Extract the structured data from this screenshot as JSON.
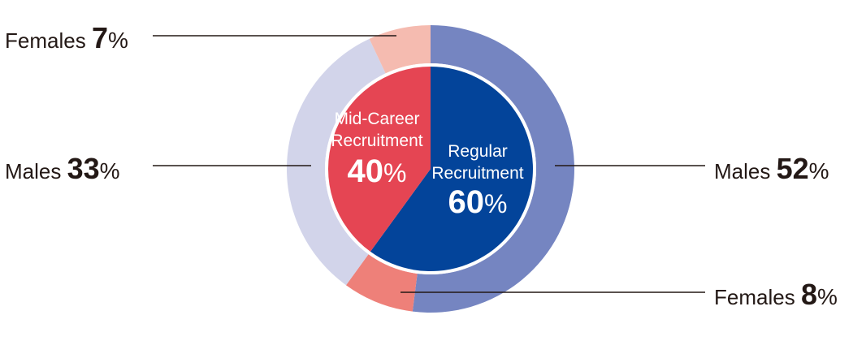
{
  "chart_data": {
    "type": "pie",
    "inner": [
      {
        "label_line1": "Regular",
        "label_line2": "Recruitment",
        "value": 60,
        "value_text": "60",
        "color": "#03449a"
      },
      {
        "label_line1": "Mid-Career",
        "label_line2": "Recruitment",
        "value": 40,
        "value_text": "40",
        "color": "#e54553"
      }
    ],
    "outer": [
      {
        "label": "Males",
        "value": 52,
        "value_text": "52",
        "color": "#7585c1"
      },
      {
        "label": "Females",
        "value": 8,
        "value_text": "8",
        "color": "#ee8079"
      },
      {
        "label": "Males",
        "value": 33,
        "value_text": "33",
        "color": "#d2d4ea"
      },
      {
        "label": "Females",
        "value": 7,
        "value_text": "7",
        "color": "#f5bbb0"
      }
    ],
    "percent_sign": "%"
  }
}
